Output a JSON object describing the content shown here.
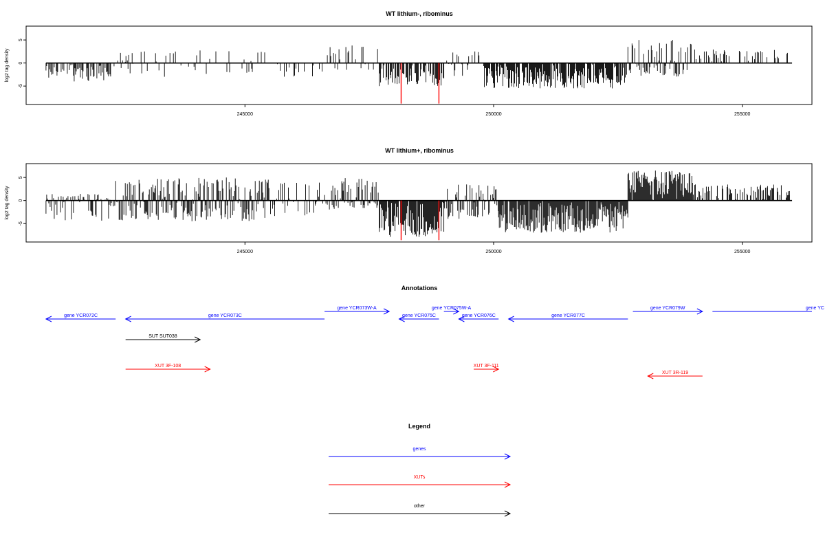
{
  "chart_data": [
    {
      "type": "bar",
      "title": "WT lithium-, ribominus",
      "ylabel": "log2 tag density",
      "xlim": [
        240600,
        256400
      ],
      "ylim": [
        -9,
        8
      ],
      "xticks": [
        245000,
        250000,
        255000
      ],
      "yticks": [
        -5,
        0,
        5
      ],
      "grid": false,
      "x_range": [
        241000,
        256000
      ],
      "segments": [
        {
          "from": 241000,
          "to": 242400,
          "min": -4,
          "max": 0.6,
          "density": 0.55
        },
        {
          "from": 242400,
          "to": 244000,
          "min": -3,
          "max": 2.5,
          "density": 0.25
        },
        {
          "from": 244000,
          "to": 245500,
          "min": -3,
          "max": 3,
          "density": 0.25
        },
        {
          "from": 245500,
          "to": 246600,
          "min": -3,
          "max": 1,
          "density": 0.2
        },
        {
          "from": 246600,
          "to": 247700,
          "min": -2,
          "max": 4,
          "density": 0.3
        },
        {
          "from": 247700,
          "to": 249000,
          "min": -5,
          "max": 1,
          "density": 0.6
        },
        {
          "from": 249000,
          "to": 249800,
          "min": -3,
          "max": 2.5,
          "density": 0.3
        },
        {
          "from": 249800,
          "to": 252700,
          "min": -5.5,
          "max": 0.5,
          "density": 0.85
        },
        {
          "from": 252700,
          "to": 254000,
          "min": -3,
          "max": 5,
          "density": 0.65
        },
        {
          "from": 254000,
          "to": 256000,
          "min": -1,
          "max": 3,
          "density": 0.3
        }
      ],
      "highlights": [
        {
          "x": 248140,
          "y": -8.8,
          "color": "#ff0000"
        },
        {
          "x": 248900,
          "y": -8.8,
          "color": "#ff0000"
        }
      ],
      "seed": 11
    },
    {
      "type": "bar",
      "title": "WT lithium+, ribominus",
      "ylabel": "log2 tag density",
      "xlim": [
        240600,
        256400
      ],
      "ylim": [
        -9,
        8
      ],
      "xticks": [
        245000,
        250000,
        255000
      ],
      "yticks": [
        -5,
        0,
        5
      ],
      "grid": false,
      "x_range": [
        241000,
        256000
      ],
      "segments": [
        {
          "from": 241000,
          "to": 242400,
          "min": -4.5,
          "max": 1.5,
          "density": 0.55
        },
        {
          "from": 242400,
          "to": 245500,
          "min": -4.5,
          "max": 5,
          "density": 0.85
        },
        {
          "from": 245500,
          "to": 246600,
          "min": -3.5,
          "max": 4,
          "density": 0.5
        },
        {
          "from": 246600,
          "to": 247700,
          "min": -2,
          "max": 5,
          "density": 0.65
        },
        {
          "from": 247700,
          "to": 249000,
          "min": -8,
          "max": 0.5,
          "density": 0.95
        },
        {
          "from": 249000,
          "to": 250100,
          "min": -4,
          "max": 3.5,
          "density": 0.7
        },
        {
          "from": 250100,
          "to": 252700,
          "min": -7,
          "max": 0.5,
          "density": 0.95
        },
        {
          "from": 252700,
          "to": 254000,
          "min": -1,
          "max": 6.5,
          "density": 0.95
        },
        {
          "from": 254000,
          "to": 256000,
          "min": -1,
          "max": 3.5,
          "density": 0.5
        }
      ],
      "highlights": [
        {
          "x": 248140,
          "y": -8.6,
          "color": "#ff0000"
        },
        {
          "x": 248900,
          "y": -8.6,
          "color": "#ff0000"
        }
      ],
      "seed": 23
    }
  ],
  "annotations": {
    "title": "Annotations",
    "features": [
      {
        "label": "gene YCR072C",
        "color": "#0000ff",
        "x1": 242400,
        "x2": 241000,
        "row": 1
      },
      {
        "label": "gene YCR073C",
        "color": "#0000ff",
        "x1": 246600,
        "x2": 242600,
        "row": 1
      },
      {
        "label": "gene YCR073W-A",
        "color": "#0000ff",
        "x1": 246600,
        "x2": 247900,
        "row": 0
      },
      {
        "label": "gene YCR075C",
        "color": "#0000ff",
        "x1": 248900,
        "x2": 248100,
        "row": 1
      },
      {
        "label": "gene YCR075W-A",
        "color": "#0000ff",
        "x1": 249000,
        "x2": 249300,
        "row": 0
      },
      {
        "label": "gene YCR076C",
        "color": "#0000ff",
        "x1": 250100,
        "x2": 249300,
        "row": 1
      },
      {
        "label": "gene YCR077C",
        "color": "#0000ff",
        "x1": 252700,
        "x2": 250300,
        "row": 1
      },
      {
        "label": "gene YCR079W",
        "color": "#0000ff",
        "x1": 252800,
        "x2": 254200,
        "row": 0
      },
      {
        "label": "gene YC",
        "color": "#0000ff",
        "x1": 254400,
        "x2": 256400,
        "row": 0,
        "arrow": false
      },
      {
        "label": "SUT SUT038",
        "color": "#000000",
        "x1": 242600,
        "x2": 244100,
        "row": 2
      },
      {
        "label": "XUT 3F-108",
        "color": "#ff0000",
        "x1": 242600,
        "x2": 244300,
        "row": 3
      },
      {
        "label": "XUT 3F-111",
        "color": "#ff0000",
        "x1": 249600,
        "x2": 250100,
        "row": 3
      },
      {
        "label": "XUT 3R-119",
        "color": "#ff0000",
        "x1": 254200,
        "x2": 253100,
        "row": 4
      }
    ]
  },
  "legend": {
    "title": "Legend",
    "items": [
      {
        "label": "genes",
        "color": "#0000ff"
      },
      {
        "label": "XUTs",
        "color": "#ff0000"
      },
      {
        "label": "other",
        "color": "#000000"
      }
    ]
  }
}
